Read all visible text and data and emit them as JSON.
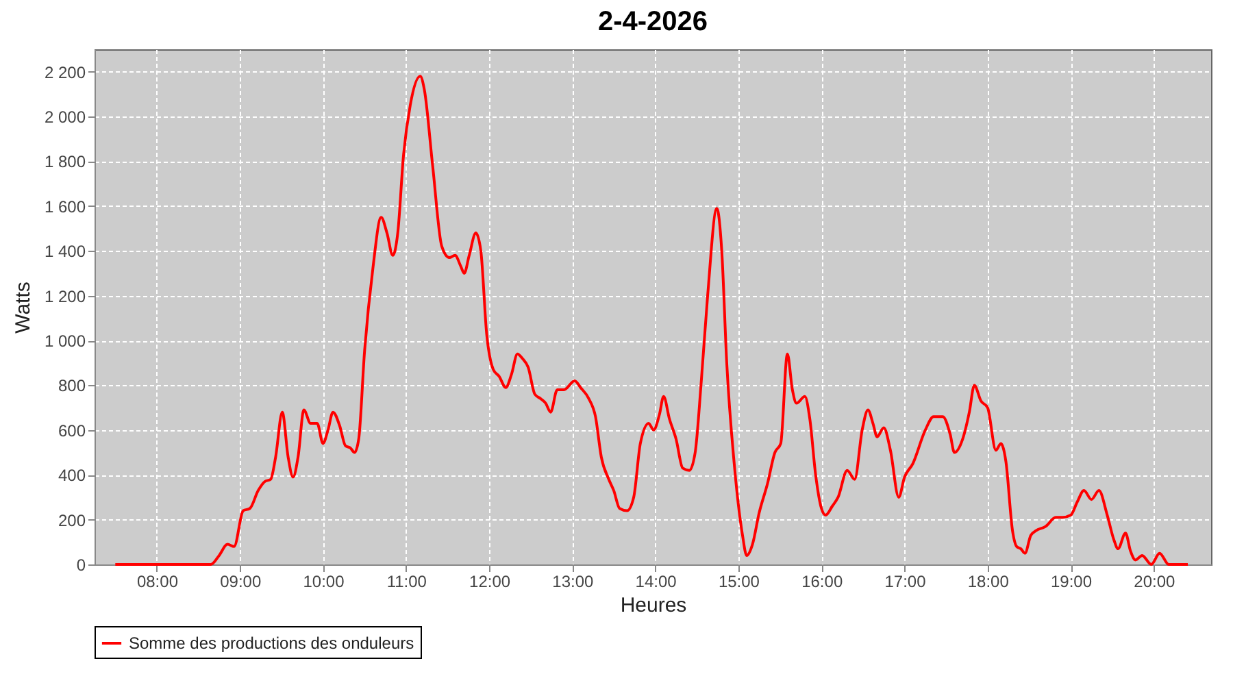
{
  "chart_data": {
    "type": "line",
    "title": "2-4-2026",
    "xlabel": "Heures",
    "ylabel": "Watts",
    "xlim": [
      7.25,
      20.69
    ],
    "xticks": [
      {
        "value": 8,
        "label": "08:00"
      },
      {
        "value": 9,
        "label": "09:00"
      },
      {
        "value": 10,
        "label": "10:00"
      },
      {
        "value": 11,
        "label": "11:00"
      },
      {
        "value": 12,
        "label": "12:00"
      },
      {
        "value": 13,
        "label": "13:00"
      },
      {
        "value": 14,
        "label": "14:00"
      },
      {
        "value": 15,
        "label": "15:00"
      },
      {
        "value": 16,
        "label": "16:00"
      },
      {
        "value": 17,
        "label": "17:00"
      },
      {
        "value": 18,
        "label": "18:00"
      },
      {
        "value": 19,
        "label": "19:00"
      },
      {
        "value": 20,
        "label": "20:00"
      }
    ],
    "ylim": [
      0,
      2300
    ],
    "yticks": [
      0,
      200,
      400,
      600,
      800,
      {
        "value": 1000,
        "label": "1 000"
      },
      {
        "value": 1200,
        "label": "1 200"
      },
      {
        "value": 1400,
        "label": "1 400"
      },
      {
        "value": 1600,
        "label": "1 600"
      },
      {
        "value": 1800,
        "label": "1 800"
      },
      {
        "value": 2000,
        "label": "2 000"
      },
      {
        "value": 2200,
        "label": "2 200"
      }
    ],
    "grid": true,
    "legend": "bottom",
    "marker": "none",
    "line_style": "solid",
    "series": [
      {
        "name": "Somme des productions des onduleurs",
        "color": "#ff0000",
        "x": [
          7.5,
          8.0,
          8.5,
          8.65,
          8.75,
          8.85,
          8.93,
          9.04,
          9.12,
          9.22,
          9.3,
          9.37,
          9.43,
          9.51,
          9.58,
          9.64,
          9.7,
          9.77,
          9.85,
          9.93,
          10.0,
          10.06,
          10.12,
          10.2,
          10.27,
          10.33,
          10.38,
          10.43,
          10.5,
          10.6,
          10.7,
          10.77,
          10.84,
          10.9,
          10.97,
          11.05,
          11.17,
          11.22,
          11.32,
          11.43,
          11.52,
          11.59,
          11.66,
          11.7,
          11.76,
          11.84,
          11.9,
          11.97,
          12.05,
          12.12,
          12.2,
          12.27,
          12.34,
          12.4,
          12.47,
          12.55,
          12.62,
          12.68,
          12.74,
          12.82,
          12.9,
          13.03,
          13.1,
          13.2,
          13.28,
          13.35,
          13.44,
          13.5,
          13.57,
          13.66,
          13.74,
          13.82,
          13.92,
          13.98,
          14.05,
          14.1,
          14.17,
          14.25,
          14.33,
          14.41,
          14.48,
          14.55,
          14.63,
          14.74,
          14.8,
          14.86,
          14.95,
          15.05,
          15.1,
          15.17,
          15.25,
          15.35,
          15.44,
          15.51,
          15.59,
          15.65,
          15.7,
          15.8,
          15.86,
          15.93,
          16.0,
          16.05,
          16.13,
          16.2,
          16.31,
          16.4,
          16.49,
          16.56,
          16.62,
          16.67,
          16.75,
          16.83,
          16.93,
          17.0,
          17.1,
          17.25,
          17.35,
          17.46,
          17.55,
          17.6,
          17.7,
          17.78,
          17.84,
          17.92,
          18.0,
          18.1,
          18.16,
          18.22,
          18.3,
          18.35,
          18.4,
          18.45,
          18.52,
          18.58,
          18.7,
          18.82,
          18.9,
          19.0,
          19.08,
          19.16,
          19.25,
          19.34,
          19.44,
          19.52,
          19.57,
          19.66,
          19.72,
          19.78,
          19.86,
          19.97,
          20.07,
          20.18,
          20.3,
          20.41
        ],
        "values": [
          0,
          0,
          0,
          0,
          40,
          90,
          80,
          240,
          250,
          330,
          370,
          380,
          480,
          680,
          480,
          390,
          480,
          690,
          630,
          630,
          540,
          600,
          680,
          620,
          530,
          520,
          500,
          560,
          950,
          1320,
          1550,
          1480,
          1380,
          1480,
          1830,
          2050,
          2180,
          2120,
          1780,
          1420,
          1370,
          1380,
          1330,
          1300,
          1380,
          1480,
          1400,
          1030,
          870,
          840,
          790,
          850,
          940,
          920,
          880,
          760,
          740,
          720,
          680,
          780,
          780,
          820,
          790,
          740,
          660,
          480,
          380,
          330,
          250,
          240,
          300,
          540,
          630,
          600,
          670,
          750,
          650,
          560,
          430,
          420,
          500,
          800,
          1200,
          1590,
          1400,
          900,
          450,
          130,
          40,
          90,
          230,
          360,
          500,
          540,
          940,
          780,
          720,
          750,
          650,
          400,
          250,
          220,
          260,
          300,
          420,
          380,
          600,
          690,
          630,
          570,
          610,
          510,
          300,
          390,
          450,
          600,
          660,
          660,
          580,
          500,
          560,
          680,
          800,
          730,
          700,
          510,
          540,
          460,
          150,
          80,
          70,
          50,
          130,
          150,
          170,
          210,
          210,
          220,
          280,
          330,
          290,
          330,
          220,
          110,
          70,
          140,
          60,
          20,
          40,
          0,
          50,
          0,
          0,
          0
        ]
      }
    ]
  }
}
